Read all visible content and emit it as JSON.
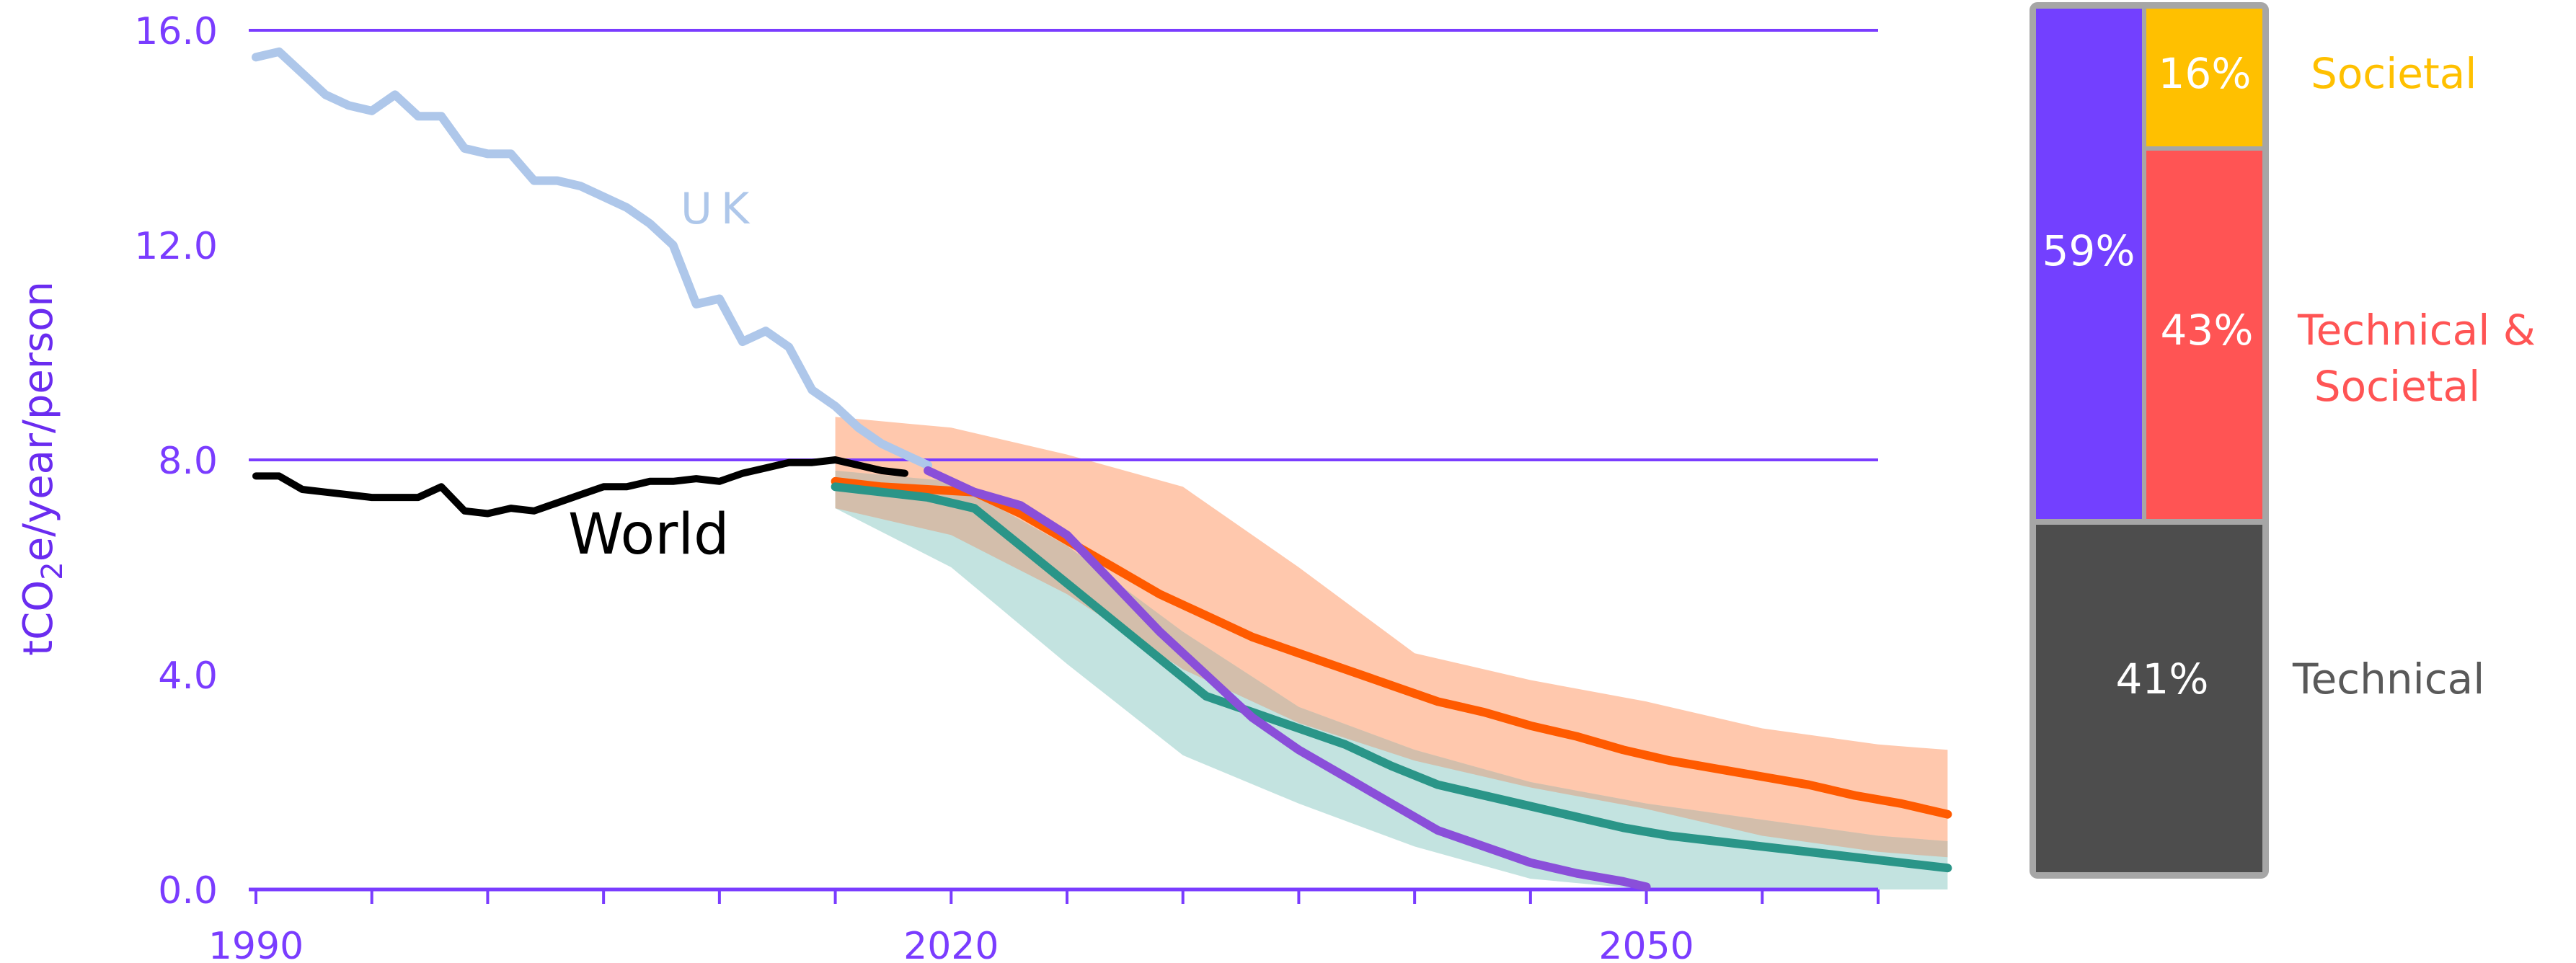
{
  "chart_data": [
    {
      "type": "line",
      "ylabel_prefix": "tCO",
      "ylabel_sub": "2",
      "ylabel_suffix": "e/year/person",
      "ylim": [
        0,
        16
      ],
      "xlim": [
        1990,
        2060
      ],
      "yticks": [
        {
          "value": 0,
          "label": "0.0"
        },
        {
          "value": 4,
          "label": "4.0"
        },
        {
          "value": 8,
          "label": "8.0"
        },
        {
          "value": 12,
          "label": "12.0"
        },
        {
          "value": 16,
          "label": "16.0"
        }
      ],
      "xtick_labels": [
        {
          "value": 1990,
          "label": "1990"
        },
        {
          "value": 2020,
          "label": "2020"
        },
        {
          "value": 2050,
          "label": "2050"
        }
      ],
      "xtick_marks": [
        1990,
        1995,
        2000,
        2005,
        2010,
        2015,
        2020,
        2025,
        2030,
        2035,
        2040,
        2045,
        2050,
        2055,
        2060
      ],
      "gridlines": [
        8,
        16
      ],
      "colors": {
        "axis": "#7a3cff",
        "uk": "#aec7ea",
        "world": "#000000",
        "orange": "#ff5a00",
        "orange_band": "#ffc8ad",
        "teal": "#2a9588",
        "teal_band": "#b8dedb",
        "overlap_band": "#d8b49e",
        "purple": "#8a4fd9"
      },
      "series": [
        {
          "name": "UK",
          "color_key": "uk",
          "points": [
            [
              1990,
              15.5
            ],
            [
              1991,
              15.6
            ],
            [
              1992,
              15.2
            ],
            [
              1993,
              14.8
            ],
            [
              1994,
              14.6
            ],
            [
              1995,
              14.5
            ],
            [
              1996,
              14.8
            ],
            [
              1997,
              14.4
            ],
            [
              1998,
              14.4
            ],
            [
              1999,
              13.8
            ],
            [
              2000,
              13.7
            ],
            [
              2001,
              13.7
            ],
            [
              2002,
              13.2
            ],
            [
              2003,
              13.2
            ],
            [
              2004,
              13.1
            ],
            [
              2005,
              12.9
            ],
            [
              2006,
              12.7
            ],
            [
              2007,
              12.4
            ],
            [
              2008,
              12.0
            ],
            [
              2009,
              10.9
            ],
            [
              2010,
              11.0
            ],
            [
              2011,
              10.2
            ],
            [
              2012,
              10.4
            ],
            [
              2013,
              10.1
            ],
            [
              2014,
              9.3
            ],
            [
              2015,
              9.0
            ],
            [
              2016,
              8.6
            ],
            [
              2017,
              8.3
            ],
            [
              2018,
              8.1
            ],
            [
              2019,
              7.9
            ]
          ]
        },
        {
          "name": "World",
          "color_key": "world",
          "points": [
            [
              1990,
              7.7
            ],
            [
              1991,
              7.7
            ],
            [
              1992,
              7.45
            ],
            [
              1993,
              7.4
            ],
            [
              1994,
              7.35
            ],
            [
              1995,
              7.3
            ],
            [
              1996,
              7.3
            ],
            [
              1997,
              7.3
            ],
            [
              1998,
              7.5
            ],
            [
              1999,
              7.05
            ],
            [
              2000,
              7.0
            ],
            [
              2001,
              7.1
            ],
            [
              2002,
              7.05
            ],
            [
              2003,
              7.2
            ],
            [
              2004,
              7.35
            ],
            [
              2005,
              7.5
            ],
            [
              2006,
              7.5
            ],
            [
              2007,
              7.6
            ],
            [
              2008,
              7.6
            ],
            [
              2009,
              7.65
            ],
            [
              2010,
              7.6
            ],
            [
              2011,
              7.75
            ],
            [
              2012,
              7.85
            ],
            [
              2013,
              7.95
            ],
            [
              2014,
              7.95
            ],
            [
              2015,
              8.0
            ],
            [
              2016,
              7.9
            ],
            [
              2017,
              7.8
            ],
            [
              2018,
              7.75
            ]
          ]
        },
        {
          "color_key": "orange",
          "points": [
            [
              2015,
              7.6
            ],
            [
              2017,
              7.5
            ],
            [
              2019,
              7.45
            ],
            [
              2021,
              7.4
            ],
            [
              2023,
              7.0
            ],
            [
              2025,
              6.5
            ],
            [
              2027,
              6.0
            ],
            [
              2029,
              5.5
            ],
            [
              2031,
              5.1
            ],
            [
              2033,
              4.7
            ],
            [
              2035,
              4.4
            ],
            [
              2037,
              4.1
            ],
            [
              2039,
              3.8
            ],
            [
              2041,
              3.5
            ],
            [
              2043,
              3.3
            ],
            [
              2045,
              3.05
            ],
            [
              2047,
              2.85
            ],
            [
              2049,
              2.6
            ],
            [
              2051,
              2.4
            ],
            [
              2053,
              2.25
            ],
            [
              2055,
              2.1
            ],
            [
              2057,
              1.95
            ],
            [
              2059,
              1.75
            ],
            [
              2061,
              1.6
            ],
            [
              2063,
              1.4
            ]
          ]
        },
        {
          "color_key": "teal",
          "points": [
            [
              2015,
              7.5
            ],
            [
              2017,
              7.4
            ],
            [
              2019,
              7.3
            ],
            [
              2021,
              7.1
            ],
            [
              2023,
              6.4
            ],
            [
              2025,
              5.7
            ],
            [
              2027,
              5.0
            ],
            [
              2029,
              4.3
            ],
            [
              2031,
              3.6
            ],
            [
              2033,
              3.3
            ],
            [
              2035,
              3.0
            ],
            [
              2037,
              2.7
            ],
            [
              2039,
              2.3
            ],
            [
              2041,
              1.95
            ],
            [
              2043,
              1.75
            ],
            [
              2045,
              1.55
            ],
            [
              2047,
              1.35
            ],
            [
              2049,
              1.15
            ],
            [
              2051,
              1.0
            ],
            [
              2053,
              0.9
            ],
            [
              2055,
              0.8
            ],
            [
              2057,
              0.7
            ],
            [
              2059,
              0.6
            ],
            [
              2061,
              0.5
            ],
            [
              2063,
              0.4
            ]
          ]
        },
        {
          "color_key": "purple",
          "points": [
            [
              2019,
              7.8
            ],
            [
              2021,
              7.4
            ],
            [
              2023,
              7.15
            ],
            [
              2025,
              6.6
            ],
            [
              2027,
              5.7
            ],
            [
              2029,
              4.8
            ],
            [
              2031,
              4.0
            ],
            [
              2033,
              3.2
            ],
            [
              2035,
              2.6
            ],
            [
              2037,
              2.1
            ],
            [
              2039,
              1.6
            ],
            [
              2041,
              1.1
            ],
            [
              2043,
              0.8
            ],
            [
              2045,
              0.5
            ],
            [
              2047,
              0.3
            ],
            [
              2049,
              0.15
            ],
            [
              2050,
              0.05
            ]
          ]
        }
      ],
      "bands": [
        {
          "color_key": "orange_band",
          "upper": [
            [
              2015,
              8.8
            ],
            [
              2020,
              8.6
            ],
            [
              2025,
              8.1
            ],
            [
              2030,
              7.5
            ],
            [
              2035,
              6.0
            ],
            [
              2040,
              4.4
            ],
            [
              2045,
              3.9
            ],
            [
              2050,
              3.5
            ],
            [
              2055,
              3.0
            ],
            [
              2060,
              2.7
            ],
            [
              2063,
              2.6
            ]
          ],
          "lower": [
            [
              2015,
              7.1
            ],
            [
              2020,
              6.6
            ],
            [
              2025,
              5.5
            ],
            [
              2030,
              4.1
            ],
            [
              2035,
              3.1
            ],
            [
              2040,
              2.4
            ],
            [
              2045,
              1.9
            ],
            [
              2050,
              1.5
            ],
            [
              2055,
              1.0
            ],
            [
              2060,
              0.7
            ],
            [
              2063,
              0.6
            ]
          ]
        },
        {
          "color_key": "teal_band",
          "upper": [
            [
              2015,
              7.8
            ],
            [
              2020,
              7.6
            ],
            [
              2025,
              6.4
            ],
            [
              2030,
              4.8
            ],
            [
              2035,
              3.4
            ],
            [
              2040,
              2.6
            ],
            [
              2045,
              2.0
            ],
            [
              2050,
              1.6
            ],
            [
              2055,
              1.3
            ],
            [
              2060,
              1.0
            ],
            [
              2063,
              0.9
            ]
          ],
          "lower": [
            [
              2015,
              7.1
            ],
            [
              2020,
              6.0
            ],
            [
              2025,
              4.2
            ],
            [
              2030,
              2.5
            ],
            [
              2035,
              1.6
            ],
            [
              2040,
              0.8
            ],
            [
              2045,
              0.2
            ],
            [
              2050,
              0.0
            ],
            [
              2055,
              0.0
            ],
            [
              2063,
              0.0
            ]
          ]
        }
      ],
      "annotations": [
        {
          "text": "UK",
          "color_key": "uk"
        },
        {
          "text": "World",
          "color_key": "world"
        }
      ]
    },
    {
      "type": "bar",
      "stacked": true,
      "segments": [
        {
          "label": "59%",
          "value": 59,
          "color": "#7340ff"
        },
        {
          "label": "16%",
          "value": 16,
          "color": "#ffc000"
        },
        {
          "label": "43%",
          "value": 43,
          "color": "#ff5454"
        },
        {
          "label": "41%",
          "value": 41,
          "color": "#4d4d4d"
        }
      ],
      "legend": [
        {
          "text": "Societal",
          "color": "#ffc000"
        },
        {
          "text": "Technical &",
          "color": "#ff5454"
        },
        {
          "text": "Societal",
          "color": "#ff5454"
        },
        {
          "text": "Technical",
          "color": "#595959"
        }
      ]
    }
  ]
}
